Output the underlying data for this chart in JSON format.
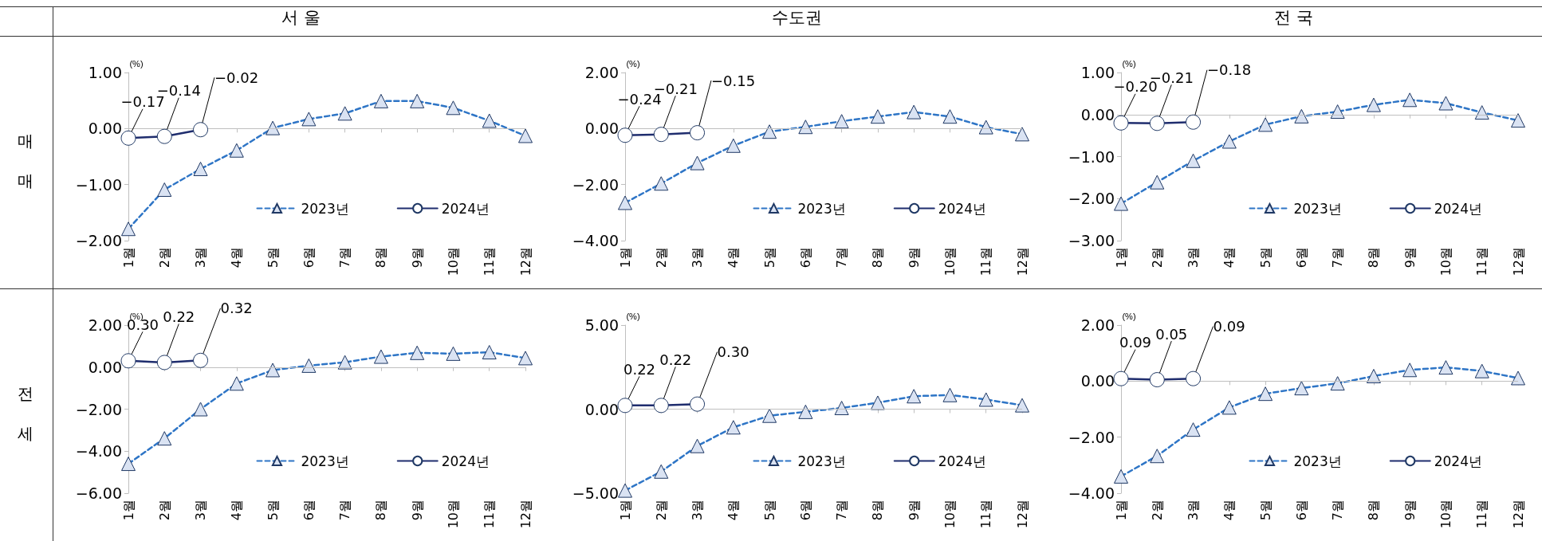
{
  "chart_data": [
    {
      "type": "line",
      "title": "서 울",
      "annotations": [
        "매매"
      ],
      "ylabel": "(%)",
      "ref_lines": [
        {
          "axis": "y",
          "value": 0,
          "color": "#bfbfbf"
        }
      ],
      "categories": [
        "1월",
        "2월",
        "3월",
        "4월",
        "5월",
        "6월",
        "7월",
        "8월",
        "9월",
        "10월",
        "11월",
        "12월"
      ],
      "ylim": [
        -2,
        1
      ],
      "yticks": [
        {
          "value": 1,
          "label": "1.00"
        },
        {
          "value": 0,
          "label": "0.00"
        },
        {
          "value": -1,
          "label": "−1.00"
        },
        {
          "value": -2,
          "label": "−2.00"
        }
      ],
      "grid": false,
      "legend": "bottom right",
      "series": [
        {
          "name": "2023년",
          "color": "#2e75c6",
          "marker": "triangle",
          "line_style": "dashed",
          "values": [
            -1.79,
            -1.09,
            -0.72,
            -0.39,
            0.01,
            0.17,
            0.27,
            0.49,
            0.49,
            0.37,
            0.14,
            -0.13
          ]
        },
        {
          "name": "2024년",
          "color": "#1f2d6e",
          "marker": "circle",
          "line_style": "solid",
          "values": [
            -0.17,
            -0.14,
            -0.02,
            null,
            null,
            null,
            null,
            null,
            null,
            null,
            null,
            null
          ],
          "value_labels": [
            "−0.17",
            "−0.14",
            "−0.02",
            null,
            null,
            null,
            null,
            null,
            null,
            null,
            null,
            null
          ]
        }
      ]
    },
    {
      "type": "line",
      "title": "수도권",
      "ylabel": "(%)",
      "ref_lines": [
        {
          "axis": "y",
          "value": 0,
          "color": "#bfbfbf"
        }
      ],
      "categories": [
        "1월",
        "2월",
        "3월",
        "4월",
        "5월",
        "6월",
        "7월",
        "8월",
        "9월",
        "10월",
        "11월",
        "12월"
      ],
      "ylim": [
        -4,
        2
      ],
      "yticks": [
        {
          "value": 2,
          "label": "2.00"
        },
        {
          "value": 0,
          "label": "0.00"
        },
        {
          "value": -2,
          "label": "−2.00"
        },
        {
          "value": -4,
          "label": "−4.00"
        }
      ],
      "grid": false,
      "legend": "bottom right",
      "series": [
        {
          "name": "2023년",
          "color": "#2e75c6",
          "marker": "triangle",
          "line_style": "dashed",
          "values": [
            -2.65,
            -1.96,
            -1.23,
            -0.61,
            -0.11,
            0.06,
            0.26,
            0.43,
            0.59,
            0.43,
            0.05,
            -0.2
          ]
        },
        {
          "name": "2024년",
          "color": "#1f2d6e",
          "marker": "circle",
          "line_style": "solid",
          "values": [
            -0.24,
            -0.21,
            -0.15,
            null,
            null,
            null,
            null,
            null,
            null,
            null,
            null,
            null
          ],
          "value_labels": [
            "−0.24",
            "−0.21",
            "−0.15",
            null,
            null,
            null,
            null,
            null,
            null,
            null,
            null,
            null
          ]
        }
      ]
    },
    {
      "type": "line",
      "title": "전 국",
      "ylabel": "(%)",
      "ref_lines": [
        {
          "axis": "y",
          "value": 0,
          "color": "#bfbfbf"
        }
      ],
      "categories": [
        "1월",
        "2월",
        "3월",
        "4월",
        "5월",
        "6월",
        "7월",
        "8월",
        "9월",
        "10월",
        "11월",
        "12월"
      ],
      "ylim": [
        -3,
        1
      ],
      "yticks": [
        {
          "value": 1,
          "label": "1.00"
        },
        {
          "value": 0,
          "label": "0.00"
        },
        {
          "value": -1,
          "label": "−1.00"
        },
        {
          "value": -2,
          "label": "−2.00"
        },
        {
          "value": -3,
          "label": "−3.00"
        }
      ],
      "grid": false,
      "legend": "bottom right",
      "series": [
        {
          "name": "2023년",
          "color": "#2e75c6",
          "marker": "triangle",
          "line_style": "dashed",
          "values": [
            -2.12,
            -1.61,
            -1.1,
            -0.64,
            -0.24,
            -0.04,
            0.07,
            0.23,
            0.35,
            0.27,
            0.05,
            -0.14
          ]
        },
        {
          "name": "2024년",
          "color": "#1f2d6e",
          "marker": "circle",
          "line_style": "solid",
          "values": [
            -0.2,
            -0.21,
            -0.18,
            null,
            null,
            null,
            null,
            null,
            null,
            null,
            null,
            null
          ],
          "value_labels": [
            "−0.20",
            "−0.21",
            "−0.18",
            null,
            null,
            null,
            null,
            null,
            null,
            null,
            null,
            null
          ]
        }
      ]
    },
    {
      "type": "line",
      "annotations": [
        "전세"
      ],
      "ylabel": "(%)",
      "ref_lines": [
        {
          "axis": "y",
          "value": 0,
          "color": "#bfbfbf"
        }
      ],
      "categories": [
        "1월",
        "2월",
        "3월",
        "4월",
        "5월",
        "6월",
        "7월",
        "8월",
        "9월",
        "10월",
        "11월",
        "12월"
      ],
      "ylim": [
        -6,
        2
      ],
      "yticks": [
        {
          "value": 2,
          "label": "2.00"
        },
        {
          "value": 0,
          "label": "0.00"
        },
        {
          "value": -2,
          "label": "−2.00"
        },
        {
          "value": -4,
          "label": "−4.00"
        },
        {
          "value": -6,
          "label": "−6.00"
        }
      ],
      "grid": false,
      "legend": "bottom right",
      "series": [
        {
          "name": "2023년",
          "color": "#2e75c6",
          "marker": "triangle",
          "line_style": "dashed",
          "values": [
            -4.6,
            -3.39,
            -2.0,
            -0.78,
            -0.14,
            0.07,
            0.23,
            0.5,
            0.68,
            0.64,
            0.71,
            0.43
          ]
        },
        {
          "name": "2024년",
          "color": "#1f2d6e",
          "marker": "circle",
          "line_style": "solid",
          "values": [
            0.3,
            0.22,
            0.32,
            null,
            null,
            null,
            null,
            null,
            null,
            null,
            null,
            null
          ],
          "value_labels": [
            "0.30",
            "0.22",
            "0.32",
            null,
            null,
            null,
            null,
            null,
            null,
            null,
            null,
            null
          ]
        }
      ]
    },
    {
      "type": "line",
      "ylabel": "(%)",
      "categories": [
        "1월",
        "2월",
        "3월",
        "4월",
        "5월",
        "6월",
        "7월",
        "8월",
        "9월",
        "10월",
        "11월",
        "12월"
      ],
      "ylim": [
        -5,
        5
      ],
      "ref_lines": [
        {
          "axis": "y",
          "value": 0,
          "color": "#bfbfbf"
        }
      ],
      "yticks": [
        {
          "value": 5,
          "label": "5.00"
        },
        {
          "value": 0,
          "label": "0.00"
        },
        {
          "value": -5,
          "label": "−5.00"
        }
      ],
      "grid": false,
      "legend": "bottom right",
      "series": [
        {
          "name": "2023년",
          "color": "#2e75c6",
          "marker": "triangle",
          "line_style": "dashed",
          "values": [
            -4.84,
            -3.71,
            -2.19,
            -1.08,
            -0.39,
            -0.16,
            0.07,
            0.38,
            0.77,
            0.84,
            0.57,
            0.23
          ]
        },
        {
          "name": "2024년",
          "color": "#1f2d6e",
          "marker": "circle",
          "line_style": "solid",
          "values": [
            0.22,
            0.22,
            0.3,
            null,
            null,
            null,
            null,
            null,
            null,
            null,
            null,
            null
          ],
          "value_labels": [
            "0.22",
            "0.22",
            "0.30",
            null,
            null,
            null,
            null,
            null,
            null,
            null,
            null,
            null
          ]
        }
      ]
    },
    {
      "type": "line",
      "ylabel": "(%)",
      "categories": [
        "1월",
        "2월",
        "3월",
        "4월",
        "5월",
        "6월",
        "7월",
        "8월",
        "9월",
        "10월",
        "11월",
        "12월"
      ],
      "ylim": [
        -4,
        2
      ],
      "ref_lines": [
        {
          "axis": "y",
          "value": 0,
          "color": "#bfbfbf"
        }
      ],
      "yticks": [
        {
          "value": 2,
          "label": "2.00"
        },
        {
          "value": 0,
          "label": "0.00"
        },
        {
          "value": -2,
          "label": "−2.00"
        },
        {
          "value": -4,
          "label": "−4.00"
        }
      ],
      "grid": false,
      "legend": "bottom right",
      "series": [
        {
          "name": "2023년",
          "color": "#2e75c6",
          "marker": "triangle",
          "line_style": "dashed",
          "values": [
            -3.4,
            -2.67,
            -1.73,
            -0.94,
            -0.45,
            -0.25,
            -0.08,
            0.18,
            0.4,
            0.49,
            0.36,
            0.11
          ]
        },
        {
          "name": "2024년",
          "color": "#1f2d6e",
          "marker": "circle",
          "line_style": "solid",
          "values": [
            0.09,
            0.05,
            0.09,
            null,
            null,
            null,
            null,
            null,
            null,
            null,
            null,
            null
          ],
          "value_labels": [
            "0.09",
            "0.05",
            "0.09",
            null,
            null,
            null,
            null,
            null,
            null,
            null,
            null,
            null
          ]
        }
      ]
    }
  ]
}
